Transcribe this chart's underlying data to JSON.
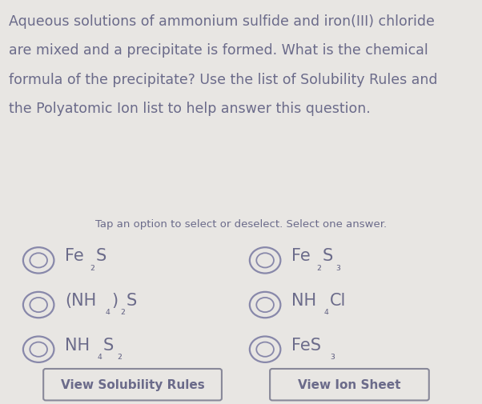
{
  "background_color": "#e8e6e3",
  "title_text_lines": [
    "Aqueous solutions of ammonium sulfide and iron(III) chloride",
    "are mixed and a precipitate is formed. What is the chemical",
    "formula of the precipitate? Use the list of Solubility Rules and",
    "the Polyatomic Ion list to help answer this question."
  ],
  "subtitle": "Tap an option to select or deselect. Select one answer.",
  "options_left": [
    {
      "parts": [
        [
          "Fe",
          false
        ],
        [
          "₂",
          false
        ],
        [
          "S",
          false
        ]
      ],
      "raw": "Fe₂S",
      "subs": [
        [
          1,
          true
        ]
      ]
    },
    {
      "parts": [
        [
          "(NH",
          false
        ],
        [
          "₄",
          false
        ],
        [
          ")",
          false
        ],
        [
          "₂",
          false
        ],
        [
          "S",
          false
        ]
      ],
      "raw": "(NH₄)₂S",
      "subs": [
        [
          1,
          true
        ],
        [
          3,
          true
        ]
      ]
    },
    {
      "parts": [
        [
          "NH",
          false
        ],
        [
          "₄",
          false
        ],
        [
          "S",
          false
        ],
        [
          "₂",
          false
        ]
      ],
      "raw": "NH₄S₂",
      "subs": [
        [
          1,
          true
        ],
        [
          3,
          true
        ]
      ]
    }
  ],
  "options_right": [
    {
      "parts": [
        [
          "Fe",
          false
        ],
        [
          "₂",
          false
        ],
        [
          "S",
          false
        ],
        [
          "₃",
          false
        ]
      ],
      "raw": "Fe₂S₃",
      "subs": [
        [
          1,
          true
        ],
        [
          3,
          true
        ]
      ]
    },
    {
      "parts": [
        [
          "NH",
          false
        ],
        [
          "₄",
          false
        ],
        [
          "Cl",
          false
        ]
      ],
      "raw": "NH₄Cl",
      "subs": [
        [
          1,
          true
        ]
      ]
    },
    {
      "parts": [
        [
          "FeS",
          false
        ],
        [
          "₃",
          false
        ]
      ],
      "raw": "FeS₃",
      "subs": [
        [
          1,
          true
        ]
      ]
    }
  ],
  "button_left": "View Solubility Rules",
  "button_right": "View Ion Sheet",
  "text_color": "#6b6b8a",
  "circle_color": "#8888aa",
  "title_fontsize": 12.5,
  "subtitle_fontsize": 9.5,
  "option_fontsize": 15,
  "button_fontsize": 11
}
